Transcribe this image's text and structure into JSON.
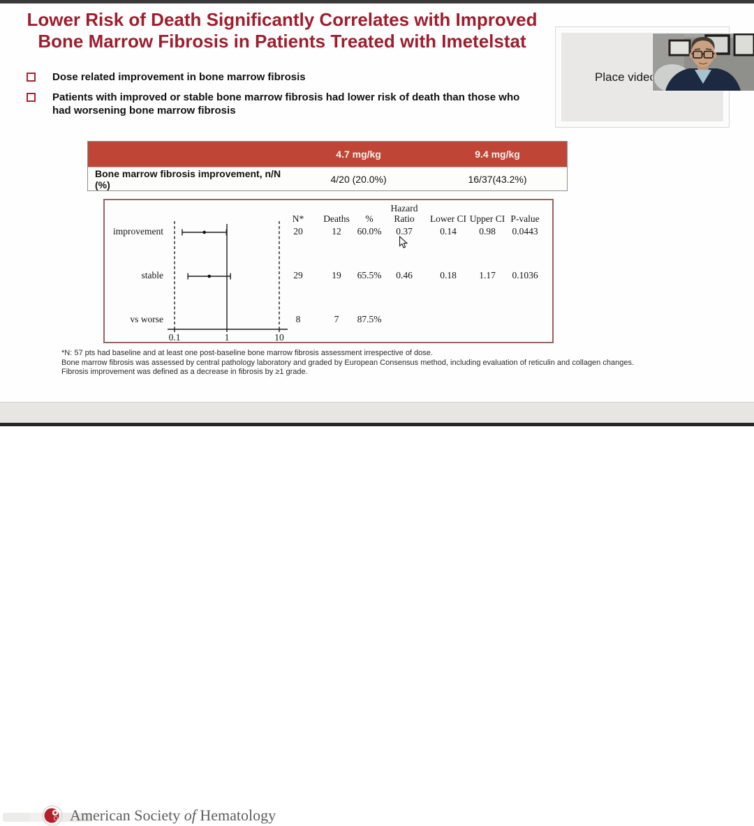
{
  "slide": {
    "title_line1": "Lower Risk of Death Significantly Correlates with Improved",
    "title_line2": "Bone Marrow Fibrosis in Patients Treated with Imetelstat",
    "title_color": "#9e1e2e",
    "bullets": [
      "Dose related improvement in bone marrow fibrosis",
      "Patients with improved or stable bone marrow fibrosis had lower risk of death than those who had worsening bone marrow fibrosis"
    ]
  },
  "dose_table": {
    "header_bg": "#bf4636",
    "columns": [
      "",
      "4.7 mg/kg",
      "9.4 mg/kg"
    ],
    "row_label": "Bone marrow fibrosis improvement, n/N (%)",
    "row_values": [
      "4/20 (20.0%)",
      "16/37(43.2%)"
    ]
  },
  "chart_data": {
    "type": "scatter",
    "subtype": "forest_plot_hazard_ratio",
    "x_scale": "log10",
    "x_ticks": [
      "0.1",
      "1",
      "10"
    ],
    "x_range": [
      0.1,
      10
    ],
    "reference_line_x": 1,
    "column_headers": {
      "n": "N*",
      "deaths": "Deaths",
      "pct": "%",
      "hr_line1": "Hazard",
      "hr_line2": "Ratio",
      "lower": "Lower CI",
      "upper": "Upper CI",
      "p": "P-value"
    },
    "rows": [
      {
        "label": "improvement",
        "n": "20",
        "deaths": "12",
        "pct": "60.0%",
        "hr": 0.37,
        "lower_ci": 0.14,
        "upper_ci": 0.98,
        "p_value": "0.0443"
      },
      {
        "label": "stable",
        "n": "29",
        "deaths": "19",
        "pct": "65.5%",
        "hr": 0.46,
        "lower_ci": 0.18,
        "upper_ci": 1.17,
        "p_value": "0.1036"
      },
      {
        "label": "vs worse",
        "n": "8",
        "deaths": "7",
        "pct": "87.5%",
        "hr": null,
        "lower_ci": null,
        "upper_ci": null,
        "p_value": null
      }
    ]
  },
  "footnotes": [
    "*N: 57 pts had baseline and at least one post-baseline bone marrow fibrosis assessment irrespective of dose.",
    "Bone marrow fibrosis was assessed by central pathology laboratory and graded by European Consensus method, including evaluation of reticulin and collagen changes.",
    "Fibrosis improvement was defined as a decrease in fibrosis by ≥1 grade."
  ],
  "video": {
    "placeholder_label": "Place video"
  },
  "footer": {
    "org_name_pre": "American Society ",
    "org_name_italic": "of",
    "org_name_post": " Hematology",
    "logo_color": "#b3202c",
    "bg": "#e7e6e3"
  }
}
